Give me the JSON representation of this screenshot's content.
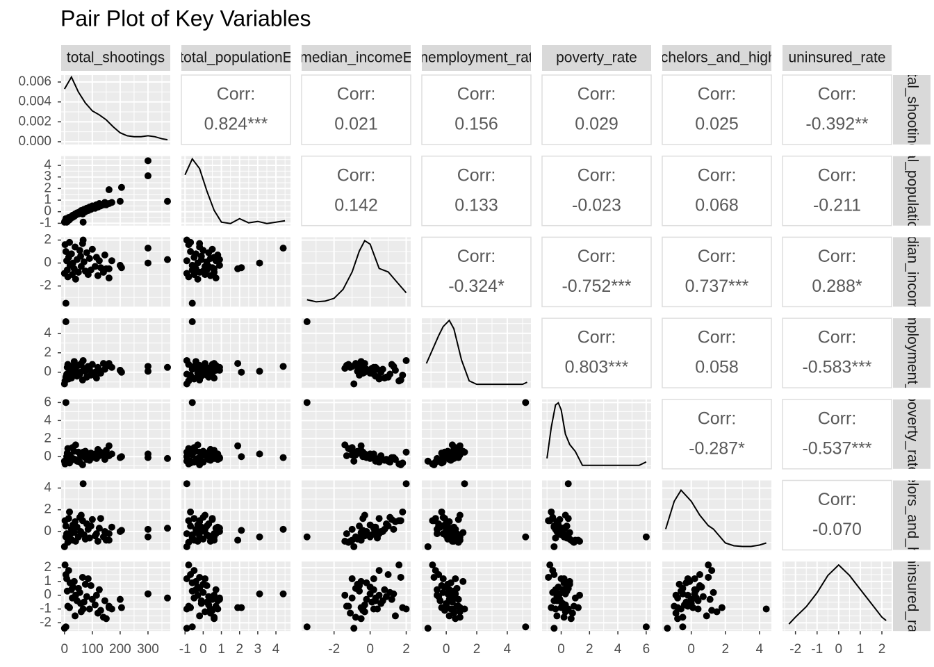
{
  "chart_data": {
    "type": "pairs",
    "title": "Pair Plot of Key Variables",
    "corr_title": "Corr:",
    "variables": [
      {
        "name": "total_shootings",
        "lim": [
          -12,
          380
        ],
        "ticks": [
          0,
          100,
          200,
          300
        ],
        "values": [
          5,
          67,
          300,
          300,
          370,
          205,
          160,
          200,
          2,
          5,
          8,
          10,
          12,
          15,
          18,
          20,
          25,
          28,
          30,
          35,
          38,
          40,
          45,
          50,
          55,
          58,
          60,
          65,
          70,
          75,
          80,
          85,
          90,
          95,
          100,
          110,
          115,
          120,
          125,
          130,
          140,
          145,
          150,
          160,
          170,
          0
        ],
        "density": {
          "x": [
            0,
            25,
            50,
            75,
            100,
            125,
            150,
            175,
            200,
            225,
            250,
            275,
            300,
            325,
            350,
            370
          ],
          "y": [
            0.0053,
            0.0065,
            0.005,
            0.0039,
            0.0031,
            0.0027,
            0.0022,
            0.0015,
            0.0009,
            0.0006,
            0.0005,
            0.0005,
            0.0006,
            0.0005,
            0.0003,
            0.0002
          ],
          "ylim": [
            -0.00028,
            0.0067
          ],
          "yticks": [
            {
              "value": 0,
              "label": "0.000"
            },
            {
              "value": 0.002,
              "label": "0.002"
            },
            {
              "value": 0.004,
              "label": "0.004"
            },
            {
              "value": 0.006,
              "label": "0.006"
            }
          ]
        }
      },
      {
        "name": "total_populationE",
        "lim": [
          -1.2,
          4.8
        ],
        "ticks": [
          -1,
          0,
          1,
          2,
          3,
          4
        ],
        "values": [
          -0.6,
          -0.9,
          4.4,
          3.1,
          0.9,
          2.1,
          1.9,
          0.9,
          -0.8,
          -0.7,
          -0.9,
          -0.6,
          -0.8,
          -0.5,
          -0.7,
          -0.6,
          -0.4,
          -0.5,
          -0.3,
          -0.4,
          -0.2,
          -0.3,
          -0.1,
          -0.2,
          0,
          -0.1,
          0.1,
          -0.2,
          0.2,
          0,
          0.3,
          0.1,
          0.4,
          0.2,
          0.5,
          0.3,
          0.6,
          0.4,
          0.7,
          0.5,
          0.6,
          0.8,
          0.6,
          0.7,
          0.8,
          -0.9
        ],
        "density": {
          "x": [
            -1,
            -0.6,
            -0.2,
            0.2,
            0.6,
            1,
            1.5,
            2,
            2.5,
            3,
            3.5,
            4,
            4.5
          ],
          "y": [
            0.73,
            0.96,
            0.82,
            0.5,
            0.22,
            0.05,
            0.03,
            0.1,
            0.04,
            0.06,
            0.03,
            0.05,
            0.07
          ],
          "ylim": [
            0,
            1
          ]
        }
      },
      {
        "name": "median_incomeE",
        "lim": [
          -3.8,
          2.25
        ],
        "ticks": [
          -2,
          0,
          2
        ],
        "values": [
          -3.5,
          2,
          1.3,
          0,
          0.3,
          -0.4,
          -0.5,
          -0.2,
          1.6,
          1,
          0.2,
          -0.6,
          -1.2,
          0.5,
          1.8,
          -0.2,
          0.8,
          -1,
          0,
          -0.5,
          1.4,
          -1.4,
          0.3,
          -0.8,
          1.1,
          0.6,
          -0.3,
          1.7,
          0.1,
          -0.7,
          0.9,
          -1,
          0.4,
          -0.6,
          1.2,
          -0.3,
          0.5,
          -1.1,
          0.2,
          -0.4,
          -0.8,
          0.7,
          -0.5,
          -1.3,
          0.2,
          -0.9
        ],
        "density": {
          "x": [
            -3.5,
            -3,
            -2.5,
            -2,
            -1.5,
            -1,
            -0.6,
            -0.3,
            0,
            0.5,
            1,
            1.5,
            2
          ],
          "y": [
            0.1,
            0.07,
            0.08,
            0.12,
            0.25,
            0.5,
            0.8,
            0.95,
            0.9,
            0.55,
            0.5,
            0.35,
            0.2
          ],
          "ylim": [
            0,
            1
          ]
        }
      },
      {
        "name": "unemployment_rate",
        "lim": [
          -1.6,
          5.55
        ],
        "ticks": [
          0,
          2,
          4
        ],
        "values": [
          5.2,
          1.2,
          0.6,
          0.1,
          0.5,
          0,
          0.9,
          0.2,
          -0.9,
          -0.5,
          -0.2,
          0.5,
          0.8,
          -0.7,
          -0.3,
          0.3,
          -0.6,
          0.6,
          -0.1,
          1.1,
          0.2,
          0.4,
          -0.4,
          0.7,
          -0.2,
          0,
          0.9,
          -0.8,
          0.4,
          0.1,
          -0.5,
          0.6,
          0.3,
          -0.3,
          0.8,
          0,
          -0.6,
          0.5,
          0.2,
          -0.1,
          0.9,
          0.3,
          0.6,
          0.7,
          0.5,
          -1.2
        ],
        "density": {
          "x": [
            -1.3,
            -0.9,
            -0.5,
            -0.2,
            0.2,
            0.5,
            1,
            1.5,
            2,
            3,
            4,
            5,
            5.3
          ],
          "y": [
            0.35,
            0.55,
            0.75,
            0.88,
            0.97,
            0.85,
            0.4,
            0.1,
            0.05,
            0.05,
            0.05,
            0.05,
            0.08
          ],
          "ylim": [
            0,
            1
          ]
        }
      },
      {
        "name": "poverty_rate",
        "lim": [
          -1.35,
          6.35
        ],
        "ticks": [
          0,
          2,
          4,
          6
        ],
        "values": [
          6,
          0.5,
          -0.1,
          0.3,
          -0.2,
          0,
          1.2,
          -0.1,
          -0.8,
          -0.5,
          0,
          0.4,
          0.9,
          -0.6,
          -0.7,
          0.2,
          -0.4,
          1,
          -0.2,
          0.6,
          -0.3,
          1.3,
          -0.5,
          0.5,
          -0.6,
          0.1,
          0.3,
          -0.9,
          0,
          0.6,
          -0.3,
          0.2,
          -0.4,
          0.4,
          -0.1,
          0.3,
          -0.2,
          0.8,
          0.1,
          0.5,
          0.2,
          -0.3,
          0.7,
          0.1,
          0.3,
          -0.5
        ],
        "density": {
          "x": [
            -1,
            -0.7,
            -0.4,
            -0.2,
            0,
            0.3,
            0.6,
            1,
            1.5,
            2,
            4,
            5.5,
            6
          ],
          "y": [
            0.15,
            0.6,
            0.92,
            0.95,
            0.85,
            0.5,
            0.35,
            0.25,
            0.05,
            0.05,
            0.05,
            0.05,
            0.1
          ],
          "ylim": [
            0,
            1
          ]
        }
      },
      {
        "name": "bachelors_and_higher",
        "lim": [
          -1.7,
          4.7
        ],
        "ticks": [
          0,
          2,
          4
        ],
        "values": [
          -0.5,
          4.4,
          0.2,
          -0.5,
          0.3,
          0.1,
          -0.8,
          0,
          1,
          0.5,
          -0.2,
          -0.6,
          -1,
          1.2,
          1.8,
          -0.3,
          0.2,
          -0.8,
          0.6,
          -0.1,
          0.9,
          -0.9,
          0.4,
          -0.5,
          1.3,
          0,
          1.5,
          1,
          -0.3,
          -0.7,
          0.7,
          0.2,
          -0.6,
          0.5,
          1.1,
          -0.4,
          -0.2,
          -0.9,
          0.3,
          1.2,
          -0.5,
          0,
          -0.8,
          -0.2,
          0.4,
          -1.4
        ],
        "density": {
          "x": [
            -1.5,
            -1,
            -0.6,
            0,
            0.5,
            1,
            1.3,
            2,
            2.5,
            3,
            3.5,
            4,
            4.4
          ],
          "y": [
            0.3,
            0.7,
            0.86,
            0.7,
            0.5,
            0.35,
            0.3,
            0.1,
            0.06,
            0.05,
            0.05,
            0.07,
            0.1
          ],
          "ylim": [
            0,
            1
          ]
        }
      },
      {
        "name": "uninsured_rate",
        "lim": [
          -2.6,
          2.45
        ],
        "ticks": [
          -2,
          -1,
          0,
          1,
          2
        ],
        "values": [
          -2.3,
          -1,
          0.1,
          0.1,
          -0.2,
          -0.9,
          -0.9,
          -0.3,
          2.2,
          1.5,
          1.2,
          0.3,
          -0.8,
          1.8,
          -0.9,
          0.9,
          0.4,
          -0.2,
          0.6,
          1,
          -1.5,
          0,
          -0.4,
          0.5,
          0.2,
          -0.6,
          -1.2,
          1.3,
          -0.5,
          0.8,
          -0.1,
          1.2,
          -1,
          0.7,
          -0.3,
          -0.7,
          0,
          -1.3,
          0.4,
          -1.1,
          -1.6,
          -0.4,
          -1.7,
          -0.8,
          -1,
          -2.4
        ],
        "density": {
          "x": [
            -2.3,
            -2,
            -1.5,
            -1,
            -0.5,
            0,
            0.5,
            1,
            1.5,
            2,
            2.2
          ],
          "y": [
            0.1,
            0.2,
            0.35,
            0.55,
            0.8,
            0.95,
            0.8,
            0.6,
            0.4,
            0.2,
            0.15
          ],
          "ylim": [
            0,
            1
          ]
        }
      }
    ],
    "correlations": [
      [
        {
          "value": 0.824,
          "label": "0.824***"
        },
        {
          "value": 0.021,
          "label": "0.021"
        },
        {
          "value": 0.156,
          "label": "0.156"
        },
        {
          "value": 0.029,
          "label": "0.029"
        },
        {
          "value": 0.025,
          "label": "0.025"
        },
        {
          "value": -0.392,
          "label": "-0.392**"
        }
      ],
      [
        {
          "value": 0.142,
          "label": "0.142"
        },
        {
          "value": 0.133,
          "label": "0.133"
        },
        {
          "value": -0.023,
          "label": "-0.023"
        },
        {
          "value": 0.068,
          "label": "0.068"
        },
        {
          "value": -0.211,
          "label": "-0.211"
        }
      ],
      [
        {
          "value": -0.324,
          "label": "-0.324*"
        },
        {
          "value": -0.752,
          "label": "-0.752***"
        },
        {
          "value": 0.737,
          "label": "0.737***"
        },
        {
          "value": 0.288,
          "label": "0.288*"
        }
      ],
      [
        {
          "value": 0.803,
          "label": "0.803***"
        },
        {
          "value": 0.058,
          "label": "0.058"
        },
        {
          "value": -0.583,
          "label": "-0.583***"
        }
      ],
      [
        {
          "value": -0.287,
          "label": "-0.287*"
        },
        {
          "value": -0.537,
          "label": "-0.537***"
        }
      ],
      [
        {
          "value": -0.07,
          "label": "-0.070"
        }
      ]
    ]
  }
}
